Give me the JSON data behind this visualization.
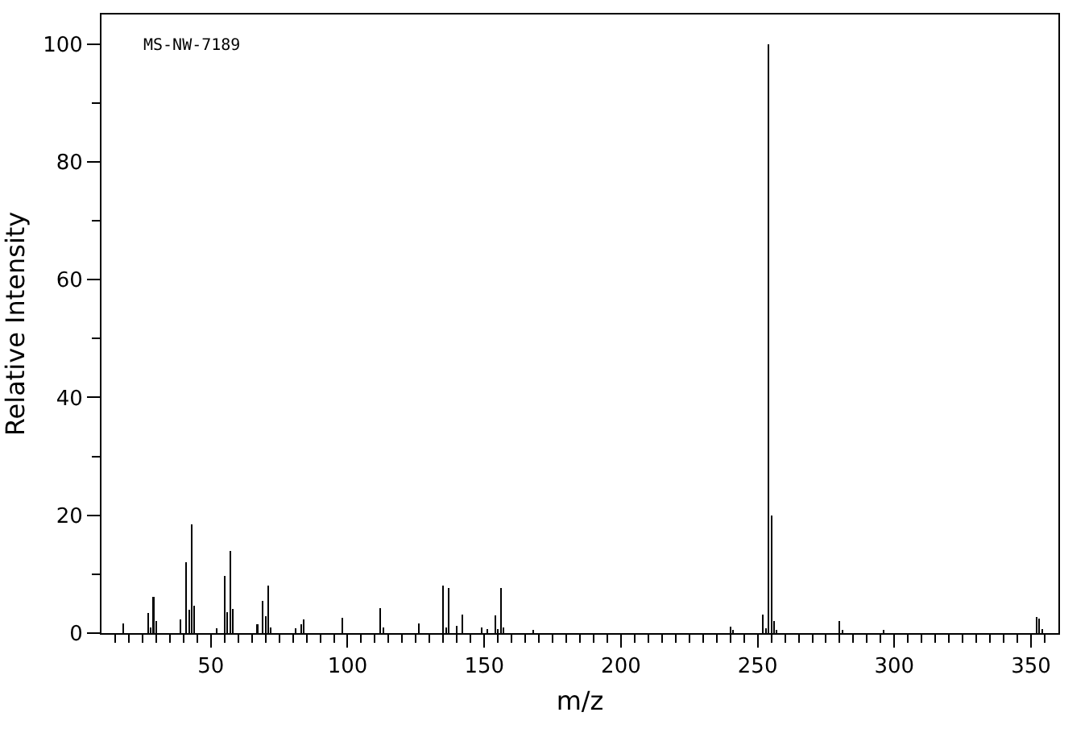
{
  "chart_data": {
    "type": "bar",
    "xlabel": "m/z",
    "ylabel": "Relative Intensity",
    "annotations": [
      "MS-NW-7189"
    ],
    "x": [
      18,
      27,
      28,
      29,
      30,
      39,
      41,
      42,
      43,
      44,
      52,
      55,
      56,
      57,
      58,
      67,
      69,
      70,
      71,
      72,
      81,
      83,
      84,
      98,
      112,
      113,
      126,
      135,
      136,
      137,
      140,
      142,
      149,
      151,
      154,
      155,
      156,
      157,
      168,
      240,
      241,
      252,
      253,
      254,
      255,
      256,
      257,
      280,
      281,
      296,
      352,
      353,
      354
    ],
    "values": [
      1.6,
      3.4,
      1,
      6.1,
      2,
      2.3,
      12.1,
      3.9,
      18.4,
      4.7,
      0.8,
      9.7,
      3.6,
      14,
      4.1,
      1.5,
      5.5,
      2.9,
      8,
      1,
      0.8,
      1.5,
      2.3,
      2.6,
      4.2,
      1,
      1.7,
      8,
      1,
      7.7,
      1.2,
      3.1,
      1,
      0.7,
      3,
      0.7,
      7.6,
      1,
      0.5,
      1.1,
      0.5,
      3.2,
      0.8,
      100,
      20,
      2,
      0.5,
      2,
      0.5,
      0.5,
      2.7,
      2.5,
      0.7
    ],
    "color": "#000000",
    "xlim": [
      10,
      360
    ],
    "ylim": [
      0,
      105
    ],
    "xticks": [
      {
        "value": 15,
        "label": null
      },
      {
        "value": 20,
        "label": null
      },
      {
        "value": 25,
        "label": null
      },
      {
        "value": 30,
        "label": null
      },
      {
        "value": 35,
        "label": null
      },
      {
        "value": 40,
        "label": null
      },
      {
        "value": 45,
        "label": null
      },
      50,
      {
        "value": 55,
        "label": null
      },
      {
        "value": 60,
        "label": null
      },
      {
        "value": 65,
        "label": null
      },
      {
        "value": 70,
        "label": null
      },
      {
        "value": 75,
        "label": null
      },
      {
        "value": 80,
        "label": null
      },
      {
        "value": 85,
        "label": null
      },
      {
        "value": 90,
        "label": null
      },
      {
        "value": 95,
        "label": null
      },
      100,
      {
        "value": 105,
        "label": null
      },
      {
        "value": 110,
        "label": null
      },
      {
        "value": 115,
        "label": null
      },
      {
        "value": 120,
        "label": null
      },
      {
        "value": 125,
        "label": null
      },
      {
        "value": 130,
        "label": null
      },
      {
        "value": 135,
        "label": null
      },
      {
        "value": 140,
        "label": null
      },
      {
        "value": 145,
        "label": null
      },
      150,
      {
        "value": 155,
        "label": null
      },
      {
        "value": 160,
        "label": null
      },
      {
        "value": 165,
        "label": null
      },
      {
        "value": 170,
        "label": null
      },
      {
        "value": 175,
        "label": null
      },
      {
        "value": 180,
        "label": null
      },
      {
        "value": 185,
        "label": null
      },
      {
        "value": 190,
        "label": null
      },
      {
        "value": 195,
        "label": null
      },
      200,
      {
        "value": 205,
        "label": null
      },
      {
        "value": 210,
        "label": null
      },
      {
        "value": 215,
        "label": null
      },
      {
        "value": 220,
        "label": null
      },
      {
        "value": 225,
        "label": null
      },
      {
        "value": 230,
        "label": null
      },
      {
        "value": 235,
        "label": null
      },
      {
        "value": 240,
        "label": null
      },
      {
        "value": 245,
        "label": null
      },
      250,
      {
        "value": 255,
        "label": null
      },
      {
        "value": 260,
        "label": null
      },
      {
        "value": 265,
        "label": null
      },
      {
        "value": 270,
        "label": null
      },
      {
        "value": 275,
        "label": null
      },
      {
        "value": 280,
        "label": null
      },
      {
        "value": 285,
        "label": null
      },
      {
        "value": 290,
        "label": null
      },
      {
        "value": 295,
        "label": null
      },
      300,
      {
        "value": 305,
        "label": null
      },
      {
        "value": 310,
        "label": null
      },
      {
        "value": 315,
        "label": null
      },
      {
        "value": 320,
        "label": null
      },
      {
        "value": 325,
        "label": null
      },
      {
        "value": 330,
        "label": null
      },
      {
        "value": 335,
        "label": null
      },
      {
        "value": 340,
        "label": null
      },
      {
        "value": 345,
        "label": null
      },
      350,
      {
        "value": 355,
        "label": null
      }
    ],
    "yticks": [
      0,
      {
        "value": 10,
        "label": null
      },
      20,
      {
        "value": 30,
        "label": null
      },
      40,
      {
        "value": 50,
        "label": null
      },
      60,
      {
        "value": 70,
        "label": null
      },
      80,
      {
        "value": 90,
        "label": null
      },
      100
    ],
    "grid": false
  }
}
